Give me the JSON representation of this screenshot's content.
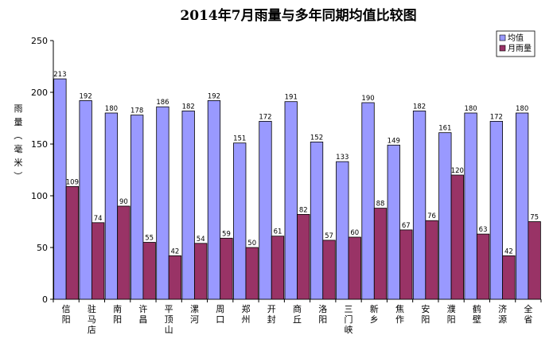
{
  "chart_data": {
    "type": "bar",
    "title": "2014年7月雨量与多年同期均值比较图",
    "ylabel": "雨量（毫米）",
    "ylim": [
      0,
      250
    ],
    "yticks": [
      0,
      50,
      100,
      150,
      200,
      250
    ],
    "grid": false,
    "legend_position": "top-right",
    "categories": [
      "信阳",
      "驻马店",
      "南阳",
      "许昌",
      "平顶山",
      "漯河",
      "周口",
      "郑州",
      "开封",
      "商丘",
      "洛阳",
      "三门峡",
      "新乡",
      "焦作",
      "安阳",
      "濮阳",
      "鹤壁",
      "济源",
      "全省"
    ],
    "series": [
      {
        "name": "均值",
        "color": "#9999ff",
        "values": [
          213,
          192,
          180,
          178,
          186,
          182,
          192,
          151,
          172,
          191,
          152,
          133,
          190,
          149,
          182,
          161,
          180,
          172,
          180
        ]
      },
      {
        "name": "月雨量",
        "color": "#993366",
        "values": [
          109,
          74,
          90,
          55,
          42,
          54,
          59,
          50,
          61,
          82,
          57,
          60,
          88,
          67,
          76,
          120,
          63,
          42,
          75
        ]
      }
    ]
  }
}
